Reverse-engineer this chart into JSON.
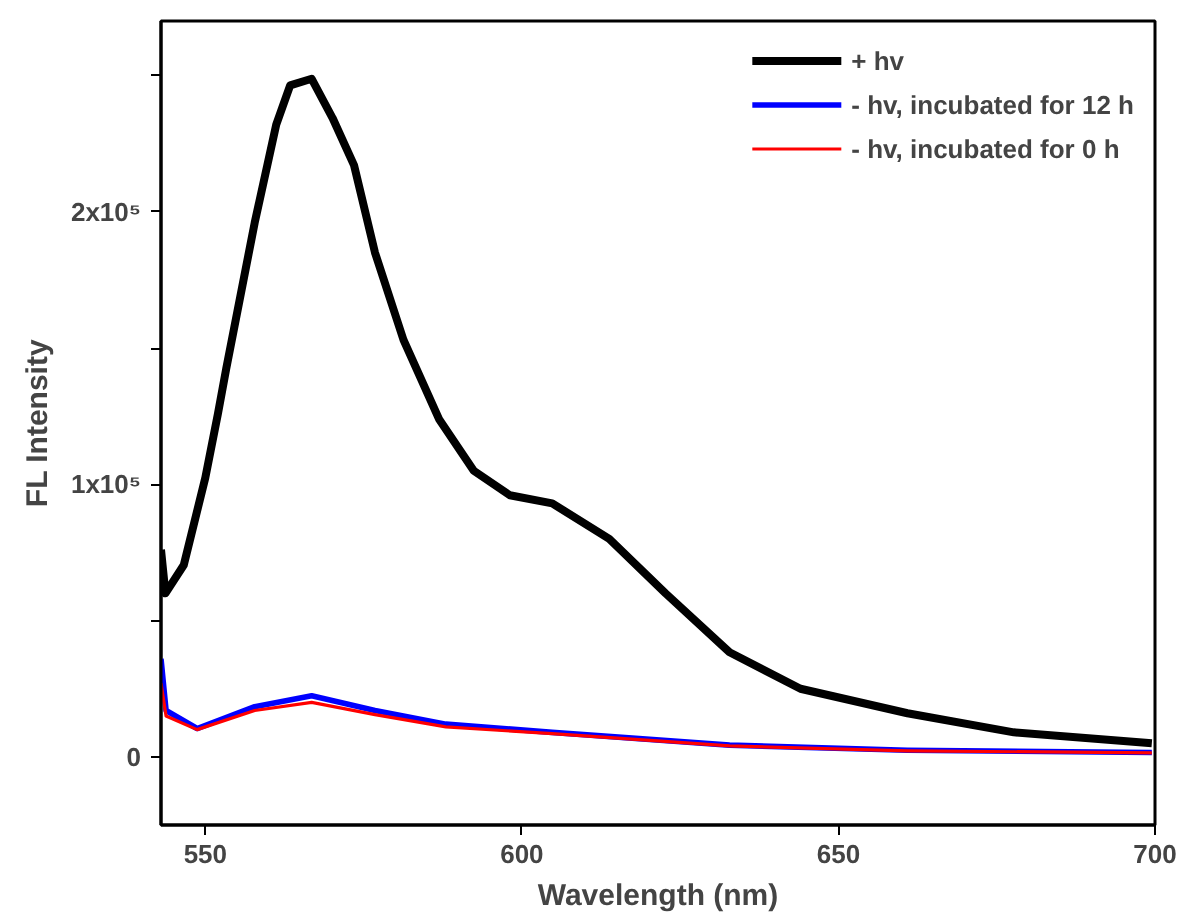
{
  "chart_data": {
    "type": "line",
    "xlabel": "Wavelength (nm)",
    "ylabel": "FL Intensity",
    "xlim": [
      543,
      700
    ],
    "ylim": [
      -25000,
      270000
    ],
    "xticks": [
      550,
      600,
      650,
      700
    ],
    "yticks": [
      {
        "value": 0,
        "label": "0"
      },
      {
        "value": 50000,
        "label": null
      },
      {
        "value": 100000,
        "label": "1x10⁵"
      },
      {
        "value": 150000,
        "label": null
      },
      {
        "value": 200000,
        "label": "2x10⁵"
      },
      {
        "value": 250000,
        "label": null
      }
    ],
    "grid": false,
    "legend": "top right",
    "marker": "none",
    "line_style": "solid",
    "series": [
      {
        "name": "+ hv",
        "color": "#000000",
        "x": [
          543,
          543.7,
          546.6,
          550,
          552,
          553.3,
          557.8,
          561.2,
          563.4,
          566.8,
          570.1,
          573.5,
          576.8,
          581.3,
          586.9,
          592.4,
          598.1,
          604.8,
          613.8,
          622.7,
          632.8,
          644,
          660.9,
          677.7,
          699.5
        ],
        "values": [
          76000,
          60000,
          70400,
          102400,
          126000,
          142400,
          196000,
          232000,
          246400,
          248800,
          234400,
          217000,
          185000,
          153000,
          124000,
          105000,
          96000,
          93000,
          80000,
          60000,
          38400,
          25000,
          16000,
          9000,
          5000
        ]
      },
      {
        "name": "- hv, incubated for 12 h",
        "color": "#0000ff",
        "x": [
          543,
          543.8,
          548.7,
          557.8,
          566.8,
          576.8,
          588,
          604.8,
          632.8,
          660.9,
          699.5
        ],
        "values": [
          36000,
          17000,
          10400,
          18400,
          22400,
          17000,
          12000,
          9000,
          4300,
          2400,
          1600
        ]
      },
      {
        "name": "- hv, incubated for 0 h",
        "color": "#ff0000",
        "x": [
          543,
          543.8,
          548.7,
          557.8,
          566.8,
          576.8,
          588,
          604.8,
          632.8,
          660.9,
          699.5
        ],
        "values": [
          27000,
          15000,
          10000,
          17000,
          20000,
          15500,
          11000,
          8500,
          4000,
          2200,
          1500
        ]
      }
    ]
  }
}
